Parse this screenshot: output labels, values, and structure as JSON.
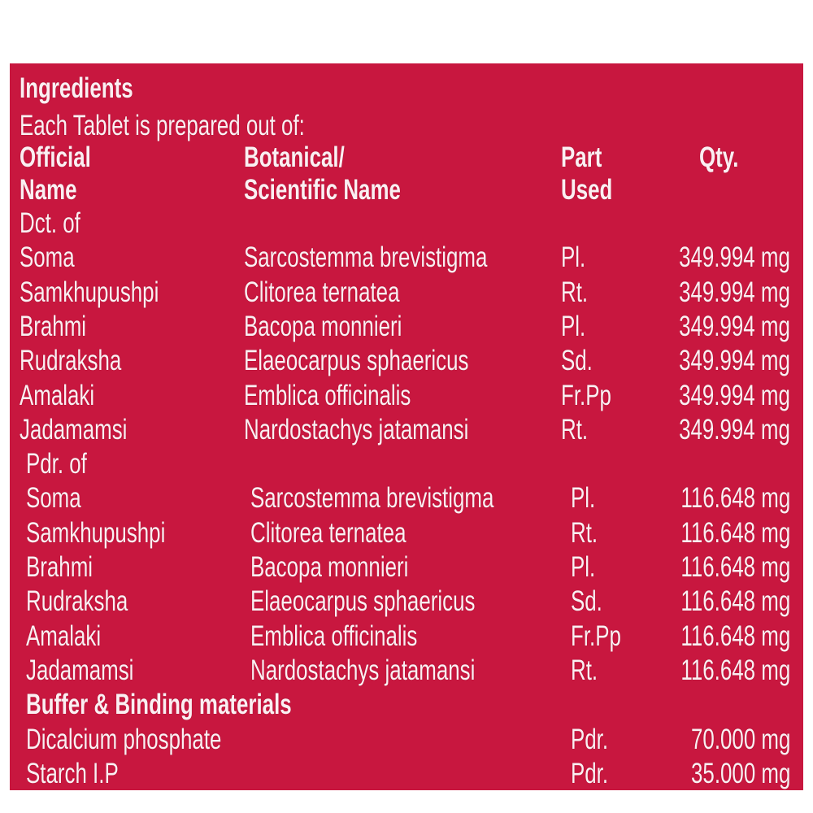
{
  "panel_color": "#c8173f",
  "title": "Ingredients",
  "subtitle": "Each Tablet is prepared out of:",
  "headers": {
    "official_1": "Official",
    "official_2": "Name",
    "botanical_1": "Botanical/",
    "botanical_2": "Scientific Name",
    "part_1": "Part",
    "part_2": "Used",
    "qty": "Qty."
  },
  "sections": [
    {
      "heading": "Dct. of",
      "rows": [
        {
          "name": "Soma",
          "botanical": "Sarcostemma brevistigma",
          "part": "Pl.",
          "qty": "349.994 mg"
        },
        {
          "name": "Samkhupushpi",
          "botanical": "Clitorea ternatea",
          "part": "Rt.",
          "qty": "349.994 mg"
        },
        {
          "name": "Brahmi",
          "botanical": "Bacopa monnieri",
          "part": "Pl.",
          "qty": "349.994 mg"
        },
        {
          "name": "Rudraksha",
          "botanical": "Elaeocarpus sphaericus",
          "part": "Sd.",
          "qty": "349.994 mg"
        },
        {
          "name": "Amalaki",
          "botanical": "Emblica officinalis",
          "part": "Fr.Pp",
          "qty": "349.994 mg"
        },
        {
          "name": "Jadamamsi",
          "botanical": "Nardostachys jatamansi",
          "part": "Rt.",
          "qty": "349.994 mg"
        }
      ]
    },
    {
      "heading": "Pdr. of",
      "rows": [
        {
          "name": "Soma",
          "botanical": "Sarcostemma brevistigma",
          "part": "Pl.",
          "qty": "116.648 mg"
        },
        {
          "name": "Samkhupushpi",
          "botanical": "Clitorea ternatea",
          "part": "Rt.",
          "qty": "116.648 mg"
        },
        {
          "name": "Brahmi",
          "botanical": "Bacopa monnieri",
          "part": "Pl.",
          "qty": "116.648 mg"
        },
        {
          "name": "Rudraksha",
          "botanical": "Elaeocarpus sphaericus",
          "part": "Sd.",
          "qty": "116.648 mg"
        },
        {
          "name": "Amalaki",
          "botanical": "Emblica officinalis",
          "part": "Fr.Pp",
          "qty": "116.648 mg"
        },
        {
          "name": "Jadamamsi",
          "botanical": "Nardostachys jatamansi",
          "part": "Rt.",
          "qty": "116.648 mg"
        }
      ]
    },
    {
      "heading": "Buffer & Binding materials",
      "rows": [
        {
          "name": "Dicalcium phosphate",
          "botanical": "",
          "part": "Pdr.",
          "qty": "70.000 mg"
        },
        {
          "name": "Starch I.P",
          "botanical": "",
          "part": "Pdr.",
          "qty": "35.000 mg"
        }
      ]
    }
  ]
}
